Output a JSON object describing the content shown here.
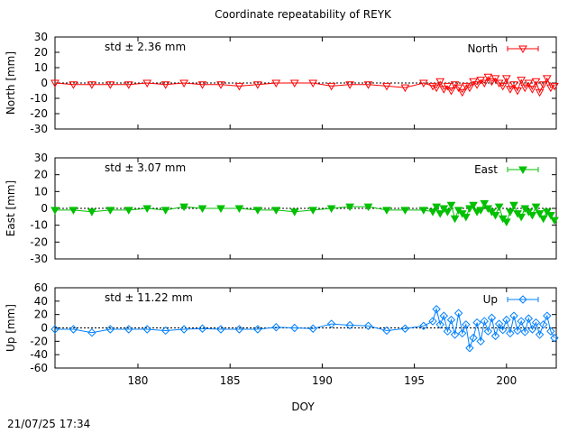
{
  "title": "Coordinate repeatability of REYK",
  "xlabel": "DOY",
  "timestamp": "21/07/25 17:34",
  "chart_data": [
    {
      "type": "line",
      "ylabel": "North [mm]",
      "legend": "North",
      "legend_position": "top-right",
      "std_text": "std ± 2.36 mm",
      "color": "#ff0000",
      "marker": "triangle-down-open",
      "xlim": [
        175.5,
        202.7
      ],
      "ylim": [
        -30,
        30
      ],
      "yticks": [
        "30",
        "20",
        "10",
        "0",
        "-10",
        "-20",
        "-30"
      ],
      "ytick_values": [
        30,
        20,
        10,
        0,
        -10,
        -20,
        -30
      ],
      "x": [
        175.5,
        176.5,
        177.5,
        178.5,
        179.5,
        180.5,
        181.5,
        182.5,
        183.5,
        184.5,
        185.5,
        186.5,
        187.5,
        188.5,
        189.5,
        190.5,
        191.5,
        192.5,
        193.5,
        194.5,
        195.5,
        196.0,
        196.2,
        196.4,
        196.6,
        196.8,
        197.0,
        197.2,
        197.4,
        197.6,
        197.8,
        198.0,
        198.2,
        198.4,
        198.6,
        198.8,
        199.0,
        199.2,
        199.4,
        199.6,
        199.8,
        200.0,
        200.2,
        200.4,
        200.6,
        200.8,
        201.0,
        201.2,
        201.4,
        201.6,
        201.8,
        202.0,
        202.2,
        202.4,
        202.6
      ],
      "y": [
        0,
        -1,
        -1,
        -1,
        -1,
        0,
        -1,
        0,
        -1,
        -1,
        -2,
        -1,
        0,
        0,
        0,
        -2,
        -1,
        -1,
        -2,
        -3,
        0,
        -2,
        -3,
        1,
        -4,
        -2,
        -5,
        -1,
        -3,
        -6,
        -2,
        -3,
        1,
        -1,
        2,
        0,
        4,
        1,
        3,
        0,
        -2,
        3,
        -4,
        -1,
        -5,
        2,
        -3,
        0,
        -4,
        1,
        -6,
        -1,
        3,
        -3,
        -2
      ]
    },
    {
      "type": "line",
      "ylabel": "East [mm]",
      "legend": "East",
      "legend_position": "top-right",
      "std_text": "std ± 3.07 mm",
      "color": "#00c000",
      "marker": "triangle-down-filled",
      "xlim": [
        175.5,
        202.7
      ],
      "ylim": [
        -30,
        30
      ],
      "yticks": [
        "30",
        "20",
        "10",
        "0",
        "-10",
        "-20",
        "-30"
      ],
      "ytick_values": [
        30,
        20,
        10,
        0,
        -10,
        -20,
        -30
      ],
      "x": [
        175.5,
        176.5,
        177.5,
        178.5,
        179.5,
        180.5,
        181.5,
        182.5,
        183.5,
        184.5,
        185.5,
        186.5,
        187.5,
        188.5,
        189.5,
        190.5,
        191.5,
        192.5,
        193.5,
        194.5,
        195.5,
        196.0,
        196.2,
        196.4,
        196.6,
        196.8,
        197.0,
        197.2,
        197.4,
        197.6,
        197.8,
        198.0,
        198.2,
        198.4,
        198.6,
        198.8,
        199.0,
        199.2,
        199.4,
        199.6,
        199.8,
        200.0,
        200.2,
        200.4,
        200.6,
        200.8,
        201.0,
        201.2,
        201.4,
        201.6,
        201.8,
        202.0,
        202.2,
        202.4,
        202.6
      ],
      "y": [
        -1,
        -1,
        -2,
        -1,
        -1,
        0,
        -1,
        1,
        0,
        0,
        0,
        -1,
        -1,
        -2,
        -1,
        0,
        1,
        1,
        -1,
        -1,
        -1,
        -2,
        1,
        -3,
        0,
        -2,
        2,
        -6,
        -1,
        -3,
        -5,
        0,
        2,
        -2,
        -1,
        3,
        0,
        -2,
        -4,
        1,
        -6,
        -8,
        -2,
        2,
        -3,
        -5,
        0,
        -2,
        -4,
        1,
        -3,
        -6,
        -2,
        -4,
        -7
      ]
    },
    {
      "type": "line",
      "ylabel": "Up [mm]",
      "legend": "Up",
      "legend_position": "top-right",
      "std_text": "std ± 11.22 mm",
      "color": "#0080ff",
      "marker": "diamond-open",
      "xlim": [
        175.5,
        202.7
      ],
      "ylim": [
        -60,
        60
      ],
      "yticks": [
        "60",
        "40",
        "20",
        "0",
        "-20",
        "-40",
        "-60"
      ],
      "ytick_values": [
        60,
        40,
        20,
        0,
        -20,
        -40,
        -60
      ],
      "x": [
        175.5,
        176.5,
        177.5,
        178.5,
        179.5,
        180.5,
        181.5,
        182.5,
        183.5,
        184.5,
        185.5,
        186.5,
        187.5,
        188.5,
        189.5,
        190.5,
        191.5,
        192.5,
        193.5,
        194.5,
        195.5,
        196.0,
        196.2,
        196.4,
        196.6,
        196.8,
        197.0,
        197.2,
        197.4,
        197.6,
        197.8,
        198.0,
        198.2,
        198.4,
        198.6,
        198.8,
        199.0,
        199.2,
        199.4,
        199.6,
        199.8,
        200.0,
        200.2,
        200.4,
        200.6,
        200.8,
        201.0,
        201.2,
        201.4,
        201.6,
        201.8,
        202.0,
        202.2,
        202.4,
        202.6
      ],
      "y": [
        -2,
        -2,
        -7,
        -2,
        -2,
        -2,
        -4,
        -2,
        -1,
        -2,
        -2,
        -2,
        1,
        0,
        -1,
        6,
        4,
        3,
        -4,
        -1,
        3,
        10,
        28,
        5,
        18,
        -5,
        12,
        -10,
        22,
        -8,
        5,
        -30,
        -15,
        8,
        -20,
        10,
        -5,
        15,
        -12,
        6,
        -3,
        12,
        -8,
        18,
        -4,
        10,
        -6,
        14,
        -2,
        8,
        -10,
        5,
        18,
        -5,
        -15
      ]
    }
  ]
}
